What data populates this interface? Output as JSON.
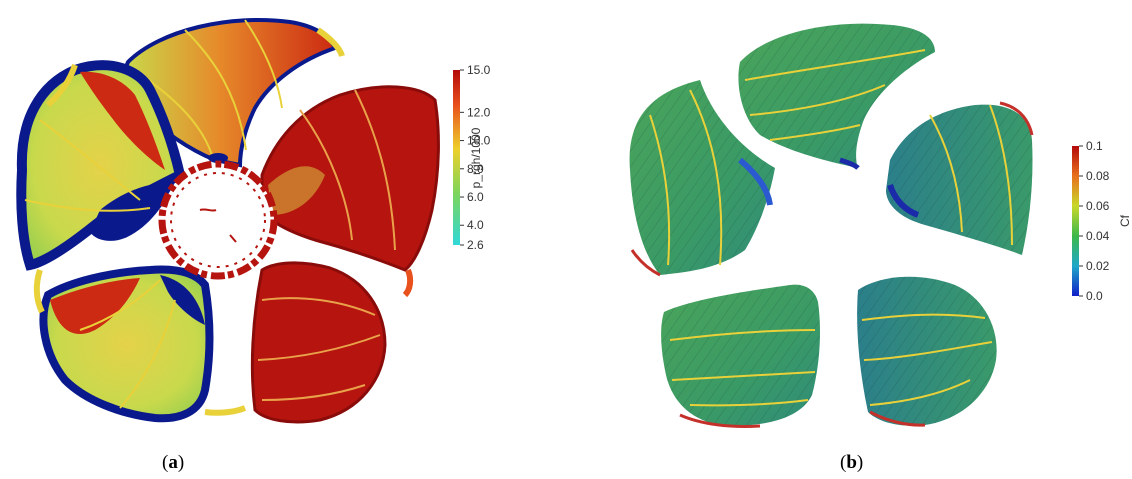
{
  "panel_a": {
    "caption_open": "(",
    "caption_letter": "a",
    "caption_close": ")",
    "colorbar": {
      "title": "p_rgh/1000",
      "ticks": [
        "15.0",
        "12.0",
        "10.0",
        "8.0",
        "6.0",
        "4.0",
        "2.6"
      ],
      "min": 2.6,
      "max": 15.0
    }
  },
  "panel_b": {
    "caption_open": "(",
    "caption_letter": "b",
    "caption_close": ")",
    "colorbar": {
      "title": "Cf",
      "ticks": [
        "0.1",
        "0.08",
        "0.06",
        "0.04",
        "0.02",
        "0.0"
      ],
      "min": 0.0,
      "max": 0.1
    }
  },
  "colors": {
    "red": "#b5140f",
    "orange": "#e8501c",
    "yellow": "#e9d13a",
    "yellowgreen": "#c6d94c",
    "green": "#3e9a58",
    "teal": "#2e8a86",
    "blue": "#0a1a8c"
  }
}
